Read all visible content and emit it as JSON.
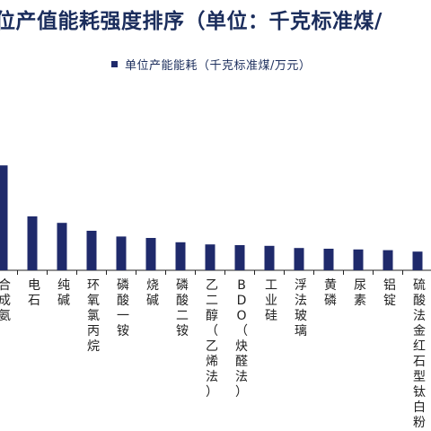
{
  "title": "位产值能耗强度排序（单位：千克标准煤/",
  "legend_label": "单位产能能耗（千克标准煤/万元）",
  "colors": {
    "bar": "#1f2a6b",
    "title": "#1b2d5c",
    "axis": "#222222"
  },
  "chart_data": {
    "type": "bar",
    "title": "位产值能耗强度排序（单位：千克标准煤/",
    "series": [
      {
        "name": "单位产能能耗（千克标准煤/万元）"
      }
    ],
    "categories": [
      "合成氨",
      "电石",
      "纯碱",
      "环氧氯丙烷",
      "磷酸一铵",
      "烧碱",
      "磷酸二铵",
      "乙二醇（乙烯法）",
      "BDO（炔醛法）",
      "工业硅",
      "浮法玻璃",
      "黄磷",
      "尿素",
      "铝锭",
      "硫酸法金红石型钛白粉"
    ],
    "values": [
      14.6,
      7.5,
      6.6,
      5.5,
      4.7,
      4.5,
      3.9,
      3.6,
      3.5,
      3.4,
      3.1,
      3.0,
      2.9,
      2.8,
      2.6
    ],
    "ylim": [
      0,
      16
    ],
    "grid": false,
    "legend_position": "top-center"
  }
}
